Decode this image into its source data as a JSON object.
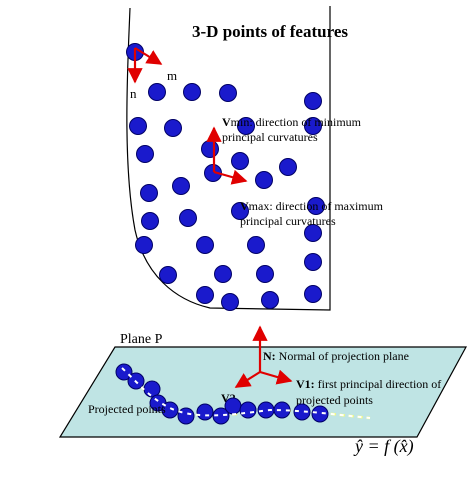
{
  "diagram": {
    "title": "3-D points of features",
    "axis_n": "n",
    "axis_m": "m",
    "vmin_bold": "V",
    "vmin_rest_line1": "min: direction of minimum",
    "vmin_line2": "principal curvatures",
    "vmax_bold": "V",
    "vmax_rest_line1": "max: direction of maximum",
    "vmax_line2": "principal curvatures",
    "plane_label": "Plane P",
    "normal_bold": "N:",
    "normal_rest": " Normal of projection plane",
    "v1_bold": "V1:",
    "v1_rest_line1": " first principal direction of",
    "v1_line2": "projected points",
    "v2_label": "V2",
    "projected_label": "Projected points",
    "equation": "ŷ = f (x̂)",
    "colors": {
      "point_fill": "#1a1acc",
      "point_stroke": "#000066",
      "arrow": "#e00000",
      "plane_fill": "#bfe4e4",
      "curve_dash": "#ffff66"
    }
  }
}
